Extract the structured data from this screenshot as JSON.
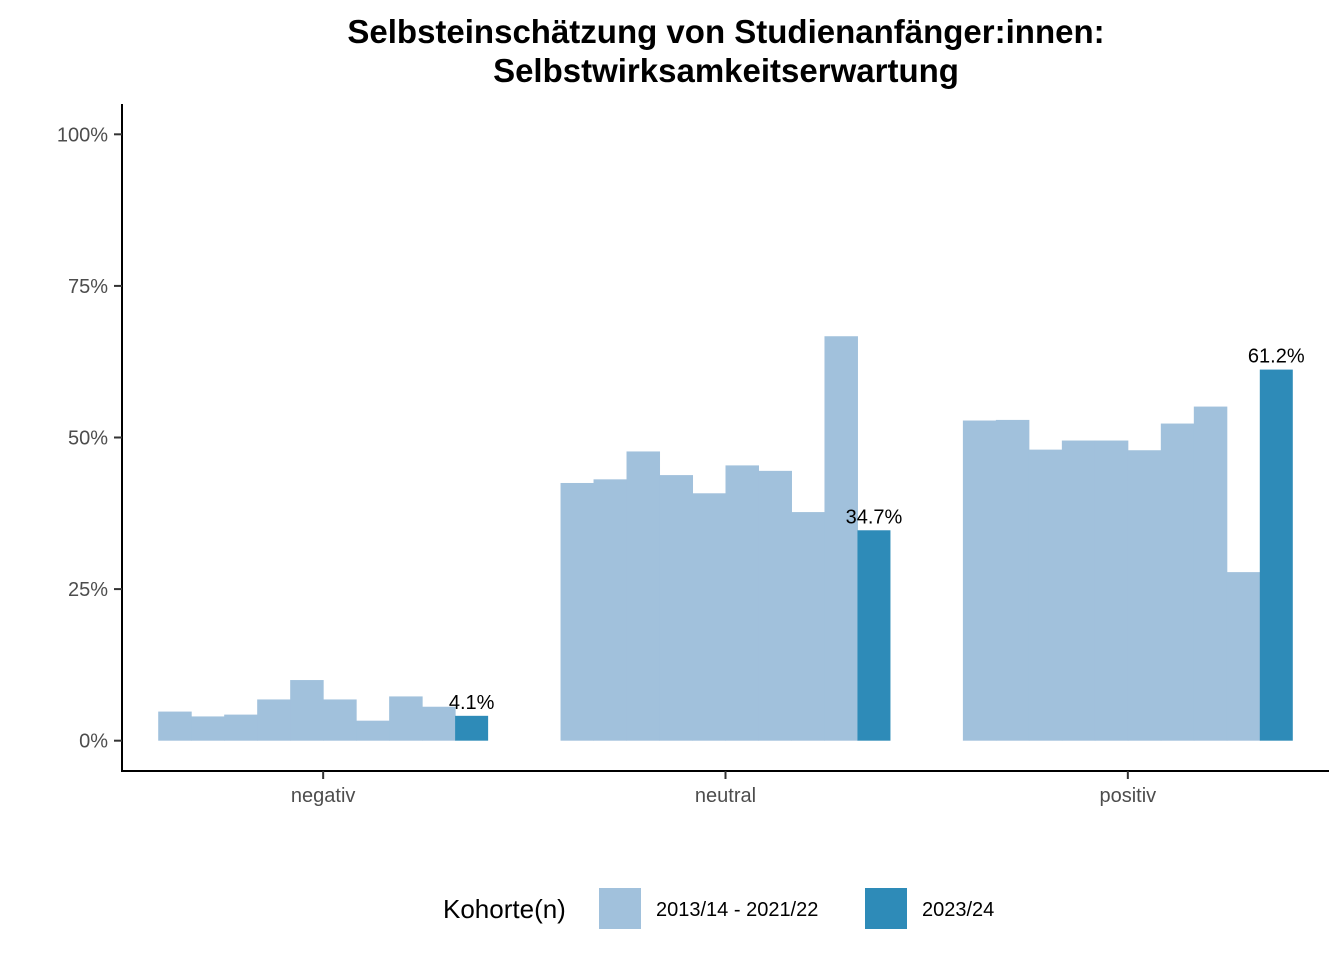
{
  "chart_data": {
    "type": "bar",
    "title": "Selbsteinschätzung von Studienanfänger:innen:",
    "subtitle": "Selbstwirksamkeitserwartung",
    "xlabel": "",
    "ylabel": "",
    "categories": [
      "negativ",
      "neutral",
      "positiv"
    ],
    "ylim": [
      -0.05,
      1.05
    ],
    "yticks": [
      0,
      0.25,
      0.5,
      0.75,
      1.0
    ],
    "ytick_labels": [
      "0%",
      "25%",
      "50%",
      "75%",
      "100%"
    ],
    "grid": false,
    "legend_position": "bottom",
    "legend_title": "Kohorte(n)",
    "series": [
      {
        "name": "2013/14 - 2021/22",
        "color": "#A1C1DC",
        "values": [
          [
            0.048,
            0.04,
            0.043,
            0.068,
            0.1,
            0.068,
            0.033,
            0.073,
            0.056
          ],
          [
            0.425,
            0.431,
            0.477,
            0.438,
            0.408,
            0.454,
            0.445,
            0.377,
            0.667
          ],
          [
            0.528,
            0.529,
            0.48,
            0.495,
            0.495,
            0.479,
            0.523,
            0.551,
            0.278
          ]
        ]
      },
      {
        "name": "2023/24",
        "color": "#2E8BB8",
        "values": [
          0.041,
          0.347,
          0.612
        ],
        "labels": [
          "4.1%",
          "34.7%",
          "61.2%"
        ]
      }
    ]
  }
}
